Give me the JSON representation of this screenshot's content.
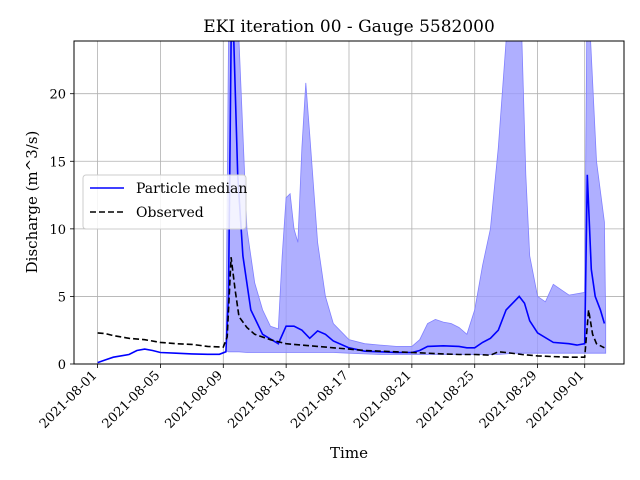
{
  "chart_data": {
    "type": "line",
    "title": "EKI iteration 00 - Gauge 5582000",
    "xlabel": "Time",
    "ylabel": "Discharge (m^3/s)",
    "xlim": [
      "2021-07-30T12:00",
      "2021-09-03T12:00"
    ],
    "ylim": [
      0,
      23.9
    ],
    "grid": true,
    "legend_position": "center-left",
    "x_ticks": [
      "2021-08-01",
      "2021-08-05",
      "2021-08-09",
      "2021-08-13",
      "2021-08-17",
      "2021-08-21",
      "2021-08-25",
      "2021-08-29",
      "2021-09-01"
    ],
    "y_ticks": [
      0,
      5,
      10,
      15,
      20
    ],
    "series": [
      {
        "name": "Particle median",
        "style": "solid",
        "color": "#0000ff",
        "points": [
          [
            "2021-08-01T00:00",
            0.1
          ],
          [
            "2021-08-01T12:00",
            0.3
          ],
          [
            "2021-08-02T00:00",
            0.5
          ],
          [
            "2021-08-03T00:00",
            0.7
          ],
          [
            "2021-08-03T12:00",
            1.0
          ],
          [
            "2021-08-04T00:00",
            1.1
          ],
          [
            "2021-08-04T12:00",
            1.0
          ],
          [
            "2021-08-05T00:00",
            0.85
          ],
          [
            "2021-08-06T00:00",
            0.8
          ],
          [
            "2021-08-07T00:00",
            0.75
          ],
          [
            "2021-08-08T00:00",
            0.72
          ],
          [
            "2021-08-08T18:00",
            0.72
          ],
          [
            "2021-08-09T04:00",
            0.9
          ],
          [
            "2021-08-09T08:00",
            5.0
          ],
          [
            "2021-08-09T12:00",
            23.9
          ],
          [
            "2021-08-09T16:00",
            23.9
          ],
          [
            "2021-08-09T22:00",
            14.0
          ],
          [
            "2021-08-10T06:00",
            8.0
          ],
          [
            "2021-08-10T18:00",
            4.0
          ],
          [
            "2021-08-11T12:00",
            2.2
          ],
          [
            "2021-08-12T12:00",
            1.5
          ],
          [
            "2021-08-13T00:00",
            2.8
          ],
          [
            "2021-08-13T12:00",
            2.8
          ],
          [
            "2021-08-14T00:00",
            2.5
          ],
          [
            "2021-08-14T12:00",
            1.9
          ],
          [
            "2021-08-15T00:00",
            2.45
          ],
          [
            "2021-08-15T12:00",
            2.2
          ],
          [
            "2021-08-16T00:00",
            1.7
          ],
          [
            "2021-08-17T00:00",
            1.2
          ],
          [
            "2021-08-18T00:00",
            0.95
          ],
          [
            "2021-08-19T00:00",
            0.9
          ],
          [
            "2021-08-20T00:00",
            0.85
          ],
          [
            "2021-08-21T00:00",
            0.85
          ],
          [
            "2021-08-21T12:00",
            1.0
          ],
          [
            "2021-08-22T00:00",
            1.3
          ],
          [
            "2021-08-23T00:00",
            1.35
          ],
          [
            "2021-08-24T00:00",
            1.3
          ],
          [
            "2021-08-24T12:00",
            1.2
          ],
          [
            "2021-08-25T00:00",
            1.2
          ],
          [
            "2021-08-25T12:00",
            1.6
          ],
          [
            "2021-08-26T00:00",
            1.9
          ],
          [
            "2021-08-26T12:00",
            2.5
          ],
          [
            "2021-08-27T00:00",
            4.0
          ],
          [
            "2021-08-27T12:00",
            4.6
          ],
          [
            "2021-08-27T20:00",
            5.0
          ],
          [
            "2021-08-28T04:00",
            4.5
          ],
          [
            "2021-08-28T12:00",
            3.2
          ],
          [
            "2021-08-29T00:00",
            2.3
          ],
          [
            "2021-08-30T00:00",
            1.6
          ],
          [
            "2021-08-31T00:00",
            1.5
          ],
          [
            "2021-08-31T12:00",
            1.4
          ],
          [
            "2021-09-01T00:00",
            1.5
          ],
          [
            "2021-09-01T04:00",
            14.0
          ],
          [
            "2021-09-01T10:00",
            7.0
          ],
          [
            "2021-09-01T16:00",
            5.0
          ],
          [
            "2021-09-02T00:00",
            4.0
          ],
          [
            "2021-09-02T06:00",
            3.0
          ]
        ]
      },
      {
        "name": "Observed",
        "style": "dashed",
        "color": "#000000",
        "points": [
          [
            "2021-08-01T00:00",
            2.3
          ],
          [
            "2021-08-01T12:00",
            2.25
          ],
          [
            "2021-08-02T00:00",
            2.1
          ],
          [
            "2021-08-03T00:00",
            1.9
          ],
          [
            "2021-08-04T00:00",
            1.8
          ],
          [
            "2021-08-05T00:00",
            1.6
          ],
          [
            "2021-08-06T00:00",
            1.5
          ],
          [
            "2021-08-07T00:00",
            1.45
          ],
          [
            "2021-08-08T00:00",
            1.3
          ],
          [
            "2021-08-09T00:00",
            1.25
          ],
          [
            "2021-08-09T06:00",
            2.0
          ],
          [
            "2021-08-09T12:00",
            7.9
          ],
          [
            "2021-08-09T18:00",
            5.5
          ],
          [
            "2021-08-10T00:00",
            3.5
          ],
          [
            "2021-08-10T12:00",
            2.7
          ],
          [
            "2021-08-11T00:00",
            2.2
          ],
          [
            "2021-08-12T00:00",
            1.8
          ],
          [
            "2021-08-13T00:00",
            1.5
          ],
          [
            "2021-08-14T00:00",
            1.4
          ],
          [
            "2021-08-15T00:00",
            1.3
          ],
          [
            "2021-08-16T00:00",
            1.2
          ],
          [
            "2021-08-17T00:00",
            1.1
          ],
          [
            "2021-08-18T00:00",
            1.0
          ],
          [
            "2021-08-19T00:00",
            0.95
          ],
          [
            "2021-08-20T00:00",
            0.9
          ],
          [
            "2021-08-21T00:00",
            0.85
          ],
          [
            "2021-08-22T00:00",
            0.8
          ],
          [
            "2021-08-23T00:00",
            0.75
          ],
          [
            "2021-08-24T00:00",
            0.7
          ],
          [
            "2021-08-25T00:00",
            0.7
          ],
          [
            "2021-08-26T00:00",
            0.65
          ],
          [
            "2021-08-26T12:00",
            0.9
          ],
          [
            "2021-08-27T00:00",
            0.85
          ],
          [
            "2021-08-28T00:00",
            0.7
          ],
          [
            "2021-08-29T00:00",
            0.6
          ],
          [
            "2021-08-30T00:00",
            0.55
          ],
          [
            "2021-08-31T00:00",
            0.5
          ],
          [
            "2021-09-01T00:00",
            0.5
          ],
          [
            "2021-09-01T06:00",
            4.0
          ],
          [
            "2021-09-01T12:00",
            2.2
          ],
          [
            "2021-09-01T18:00",
            1.5
          ],
          [
            "2021-09-02T06:00",
            1.2
          ]
        ]
      }
    ],
    "band": {
      "color": "#9b9bff",
      "edge_color": "#8080ff",
      "points": [
        [
          "2021-08-09T04:00",
          1.0,
          1.0
        ],
        [
          "2021-08-09T08:00",
          0.9,
          23.9
        ],
        [
          "2021-08-10T00:00",
          0.9,
          23.9
        ],
        [
          "2021-08-10T12:00",
          0.85,
          10.0
        ],
        [
          "2021-08-11T00:00",
          0.85,
          6.0
        ],
        [
          "2021-08-11T12:00",
          0.85,
          4.0
        ],
        [
          "2021-08-12T00:00",
          0.85,
          2.8
        ],
        [
          "2021-08-12T12:00",
          0.85,
          2.6
        ],
        [
          "2021-08-12T18:00",
          0.85,
          8.0
        ],
        [
          "2021-08-13T00:00",
          0.85,
          12.3
        ],
        [
          "2021-08-13T06:00",
          0.85,
          12.6
        ],
        [
          "2021-08-13T12:00",
          0.85,
          10.0
        ],
        [
          "2021-08-13T18:00",
          0.85,
          9.0
        ],
        [
          "2021-08-14T00:00",
          0.85,
          16.0
        ],
        [
          "2021-08-14T06:00",
          0.85,
          20.8
        ],
        [
          "2021-08-14T12:00",
          0.85,
          17.0
        ],
        [
          "2021-08-15T00:00",
          0.85,
          9.0
        ],
        [
          "2021-08-15T12:00",
          0.85,
          5.0
        ],
        [
          "2021-08-16T00:00",
          0.85,
          3.0
        ],
        [
          "2021-08-17T00:00",
          0.8,
          1.8
        ],
        [
          "2021-08-18T00:00",
          0.75,
          1.5
        ],
        [
          "2021-08-19T00:00",
          0.7,
          1.4
        ],
        [
          "2021-08-20T00:00",
          0.7,
          1.3
        ],
        [
          "2021-08-21T00:00",
          0.7,
          1.3
        ],
        [
          "2021-08-21T12:00",
          0.7,
          1.8
        ],
        [
          "2021-08-22T00:00",
          0.7,
          3.0
        ],
        [
          "2021-08-22T12:00",
          0.7,
          3.3
        ],
        [
          "2021-08-23T00:00",
          0.7,
          3.1
        ],
        [
          "2021-08-23T12:00",
          0.7,
          3.0
        ],
        [
          "2021-08-24T00:00",
          0.7,
          2.7
        ],
        [
          "2021-08-24T12:00",
          0.7,
          2.2
        ],
        [
          "2021-08-25T00:00",
          0.7,
          4.0
        ],
        [
          "2021-08-25T12:00",
          0.7,
          7.3
        ],
        [
          "2021-08-26T00:00",
          0.7,
          10.0
        ],
        [
          "2021-08-26T12:00",
          0.7,
          16.0
        ],
        [
          "2021-08-27T00:00",
          0.75,
          23.9
        ],
        [
          "2021-08-27T12:00",
          0.8,
          23.9
        ],
        [
          "2021-08-28T00:00",
          0.8,
          23.9
        ],
        [
          "2021-08-28T06:00",
          0.8,
          14.0
        ],
        [
          "2021-08-28T12:00",
          0.8,
          8.0
        ],
        [
          "2021-08-29T00:00",
          0.8,
          5.0
        ],
        [
          "2021-08-29T12:00",
          0.8,
          4.6
        ],
        [
          "2021-08-30T00:00",
          0.8,
          5.9
        ],
        [
          "2021-08-30T12:00",
          0.8,
          5.5
        ],
        [
          "2021-08-31T00:00",
          0.8,
          5.1
        ],
        [
          "2021-09-01T00:00",
          0.8,
          5.3
        ],
        [
          "2021-09-01T03:00",
          0.8,
          23.9
        ],
        [
          "2021-09-01T09:00",
          0.8,
          23.9
        ],
        [
          "2021-09-01T18:00",
          0.8,
          15.0
        ],
        [
          "2021-09-02T06:00",
          0.8,
          10.5
        ],
        [
          "2021-09-02T08:00",
          0.8,
          3.0
        ]
      ]
    }
  }
}
